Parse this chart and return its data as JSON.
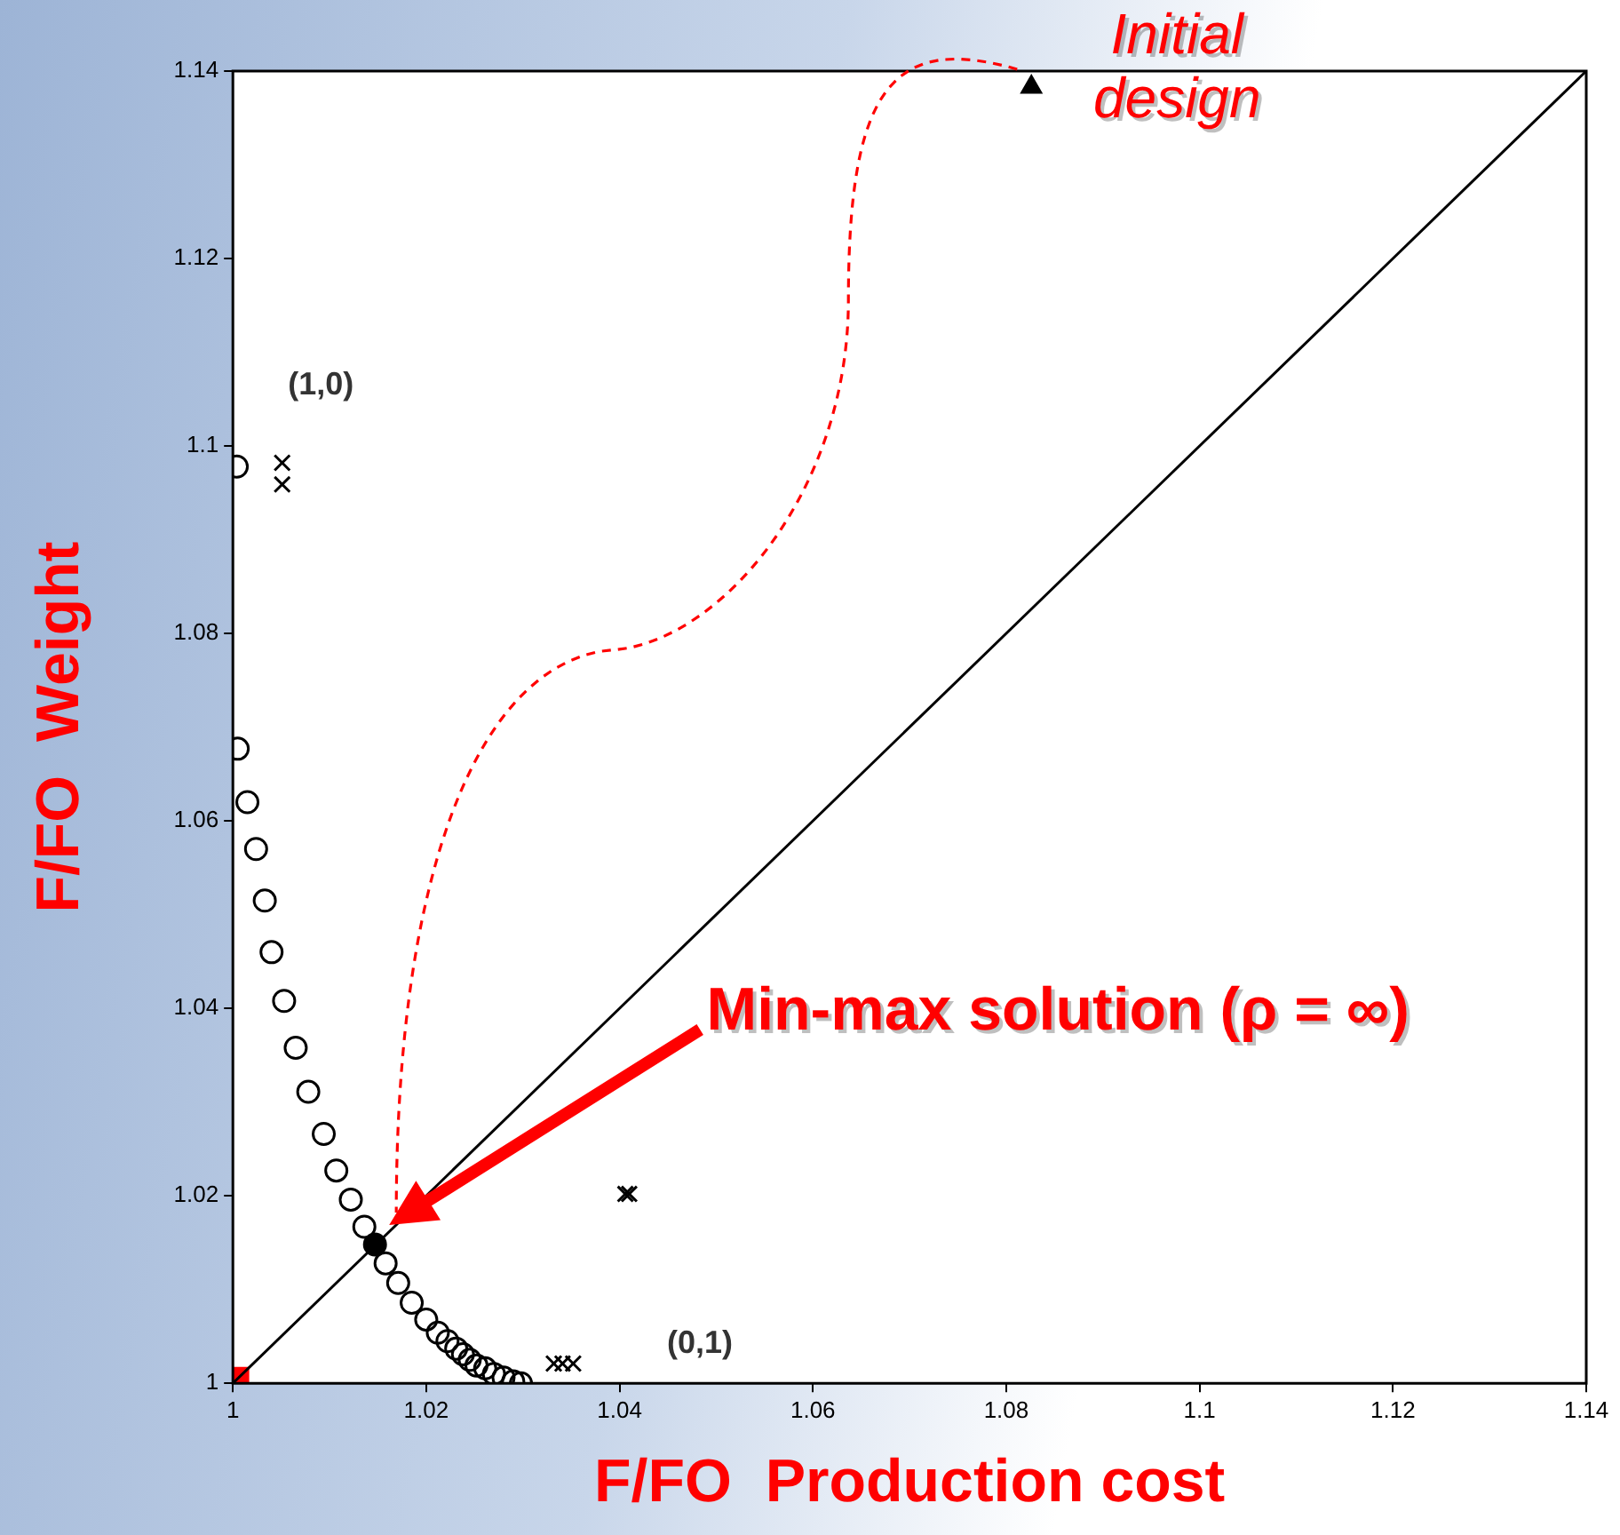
{
  "chart_data": {
    "type": "scatter",
    "xlabel": "F/FO  Production cost",
    "ylabel": "F/FO  Weight",
    "xlim": [
      1,
      1.14
    ],
    "ylim": [
      1,
      1.14
    ],
    "xticks": [
      1,
      1.02,
      1.04,
      1.06,
      1.08,
      1.1,
      1.12,
      1.14
    ],
    "yticks": [
      1,
      1.02,
      1.04,
      1.06,
      1.08,
      1.1,
      1.12,
      1.14
    ],
    "grid": false,
    "legend": false,
    "series": [
      {
        "type": "line",
        "color": "#000000",
        "marker": "none",
        "x": [
          1,
          1.14
        ],
        "values": [
          1,
          1.14
        ]
      },
      {
        "color": "#000000",
        "marker": "circle",
        "x": [
          1.0004,
          1.0005,
          1.0015,
          1.0024,
          1.0033,
          1.004,
          1.0053,
          1.0065,
          1.0078,
          1.0094,
          1.0107,
          1.0122,
          1.0136,
          1.0158,
          1.0171,
          1.0185,
          1.02,
          1.0212,
          1.0222,
          1.0231,
          1.0238,
          1.0245,
          1.0252,
          1.0261,
          1.027,
          1.028,
          1.029,
          1.0298
        ],
        "values": [
          1.0978,
          1.0677,
          1.062,
          1.057,
          1.0515,
          1.046,
          1.0408,
          1.0358,
          1.0311,
          1.0266,
          1.0227,
          1.0196,
          1.0167,
          1.0128,
          1.0107,
          1.0086,
          1.0068,
          1.0054,
          1.0045,
          1.0037,
          1.0031,
          1.0025,
          1.0019,
          1.0016,
          1.001,
          1.0006,
          1.0002,
          1.0
        ]
      },
      {
        "color": "#000000",
        "marker": "circle",
        "x": [
          1.0147
        ],
        "values": [
          1.0148
        ]
      },
      {
        "color": "#000000",
        "marker": "cross",
        "x": [
          1.0051,
          1.0051,
          1.041,
          1.0406,
          1.0332,
          1.0341,
          1.0352
        ],
        "values": [
          1.0982,
          1.0959,
          1.0202,
          1.0202,
          1.0021,
          1.0021,
          1.0021
        ]
      },
      {
        "color": "#000000",
        "marker": "triangle",
        "x": [
          1.0826
        ],
        "values": [
          1.1383
        ]
      },
      {
        "color": "#ff0000",
        "marker": "square",
        "x": [
          1
        ],
        "values": [
          1
        ]
      }
    ],
    "annotations": [
      {
        "text": "Initial\ndesign",
        "x": 1.0826,
        "y": 1.1383
      },
      "(1,0)",
      "(0,1)",
      "Min-max solution (ρ = ∞)"
    ]
  }
}
